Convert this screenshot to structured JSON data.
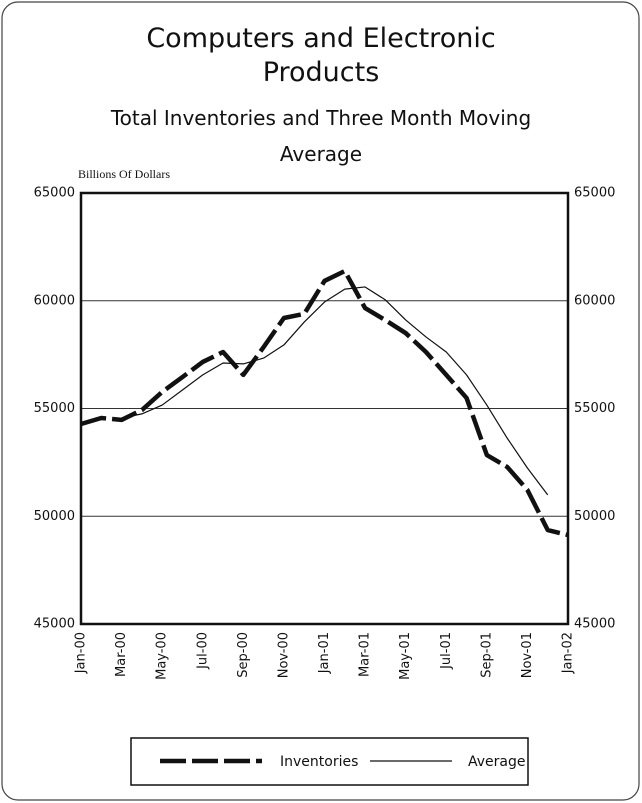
{
  "chart_data": {
    "type": "line",
    "title": "Computers and Electronic Products",
    "subtitle": "Total Inventories and Three Month Moving Average",
    "y_label": "Billions Of Dollars",
    "categories": [
      "Jan-00",
      null,
      "Mar-00",
      null,
      "May-00",
      null,
      "Jul-00",
      null,
      "Sep-00",
      null,
      "Nov-00",
      null,
      "Jan-01",
      null,
      "Mar-01",
      null,
      "May-01",
      null,
      "Jul-01",
      null,
      "Sep-01",
      null,
      "Nov-01",
      null,
      "Jan-02"
    ],
    "series": [
      {
        "name": "Inventories",
        "color": "#111111",
        "values": [
          54280,
          54560,
          54470,
          54930,
          55770,
          56460,
          57160,
          57620,
          56560,
          57850,
          59200,
          59390,
          60920,
          61380,
          59660,
          59100,
          58500,
          57620,
          56560,
          55490,
          52840,
          52290,
          51220,
          49360,
          49130
        ]
      },
      {
        "name": "Average",
        "color": "#111111",
        "values": [
          null,
          null,
          54560,
          54750,
          55160,
          55860,
          56560,
          57110,
          57070,
          57340,
          57950,
          59010,
          59940,
          60540,
          60640,
          60040,
          59110,
          58320,
          57620,
          56560,
          55160,
          53630,
          52240,
          50990,
          null
        ]
      }
    ],
    "ylim": [
      45000,
      65000
    ],
    "yticks": [
      45000,
      50000,
      55000,
      60000,
      65000
    ],
    "grid": true,
    "legend": "bottom"
  }
}
